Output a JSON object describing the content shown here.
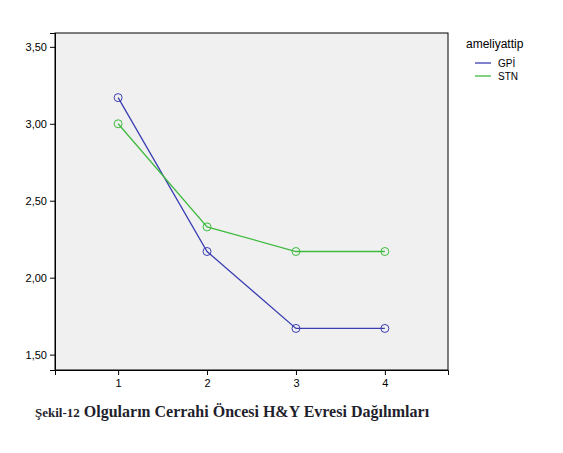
{
  "chart_data": {
    "type": "line",
    "title": "Olguların Cerrahi Öncesi H&Y Evresi Dağılımları",
    "annotations": [
      "Şekil-12"
    ],
    "legend_title": "ameliyattip",
    "x": [
      1,
      2,
      3,
      4
    ],
    "xlim": [
      0.29,
      4.71
    ],
    "xticks": [
      1,
      2,
      3,
      4
    ],
    "ylim": [
      1.4,
      3.59
    ],
    "yticks": [
      {
        "value": 1.5,
        "label": "1,50"
      },
      {
        "value": 2.0,
        "label": "2,00"
      },
      {
        "value": 2.5,
        "label": "2,50"
      },
      {
        "value": 3.0,
        "label": "3,00"
      },
      {
        "value": 3.5,
        "label": "3,50"
      }
    ],
    "series": [
      {
        "name": "GPİ",
        "color": "#3b3fb3",
        "marker": "circle",
        "line_style": "solid",
        "values": [
          3.17,
          2.17,
          1.67,
          1.67
        ]
      },
      {
        "name": "STN",
        "color": "#3fba3f",
        "marker": "circle",
        "line_style": "solid",
        "values": [
          3.0,
          2.33,
          2.17,
          2.17
        ]
      }
    ],
    "grid": false,
    "legend": "right"
  }
}
